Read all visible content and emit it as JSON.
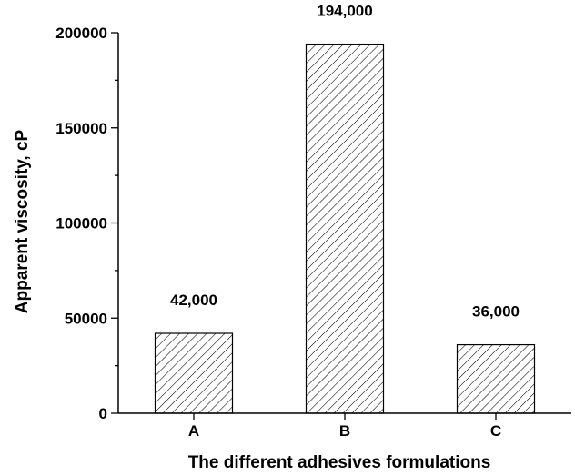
{
  "chart_data": {
    "type": "bar",
    "title": "",
    "xlabel": "The different adhesives formulations",
    "ylabel": "Apparent viscosity, cP",
    "categories": [
      "A",
      "B",
      "C"
    ],
    "values": [
      42000,
      194000,
      36000
    ],
    "data_labels": [
      "42,000",
      "194,000",
      "36,000"
    ],
    "ylim": [
      0,
      200000
    ],
    "yticks": [
      0,
      50000,
      100000,
      150000,
      200000
    ],
    "ytick_labels": [
      "0",
      "50000",
      "100000",
      "150000",
      "200000"
    ],
    "grid": false,
    "legend": "none",
    "bar_fill": "hatched diagonal",
    "colors": {
      "bar_stroke": "#000000",
      "hatch": "#000000",
      "axis": "#000000"
    }
  }
}
